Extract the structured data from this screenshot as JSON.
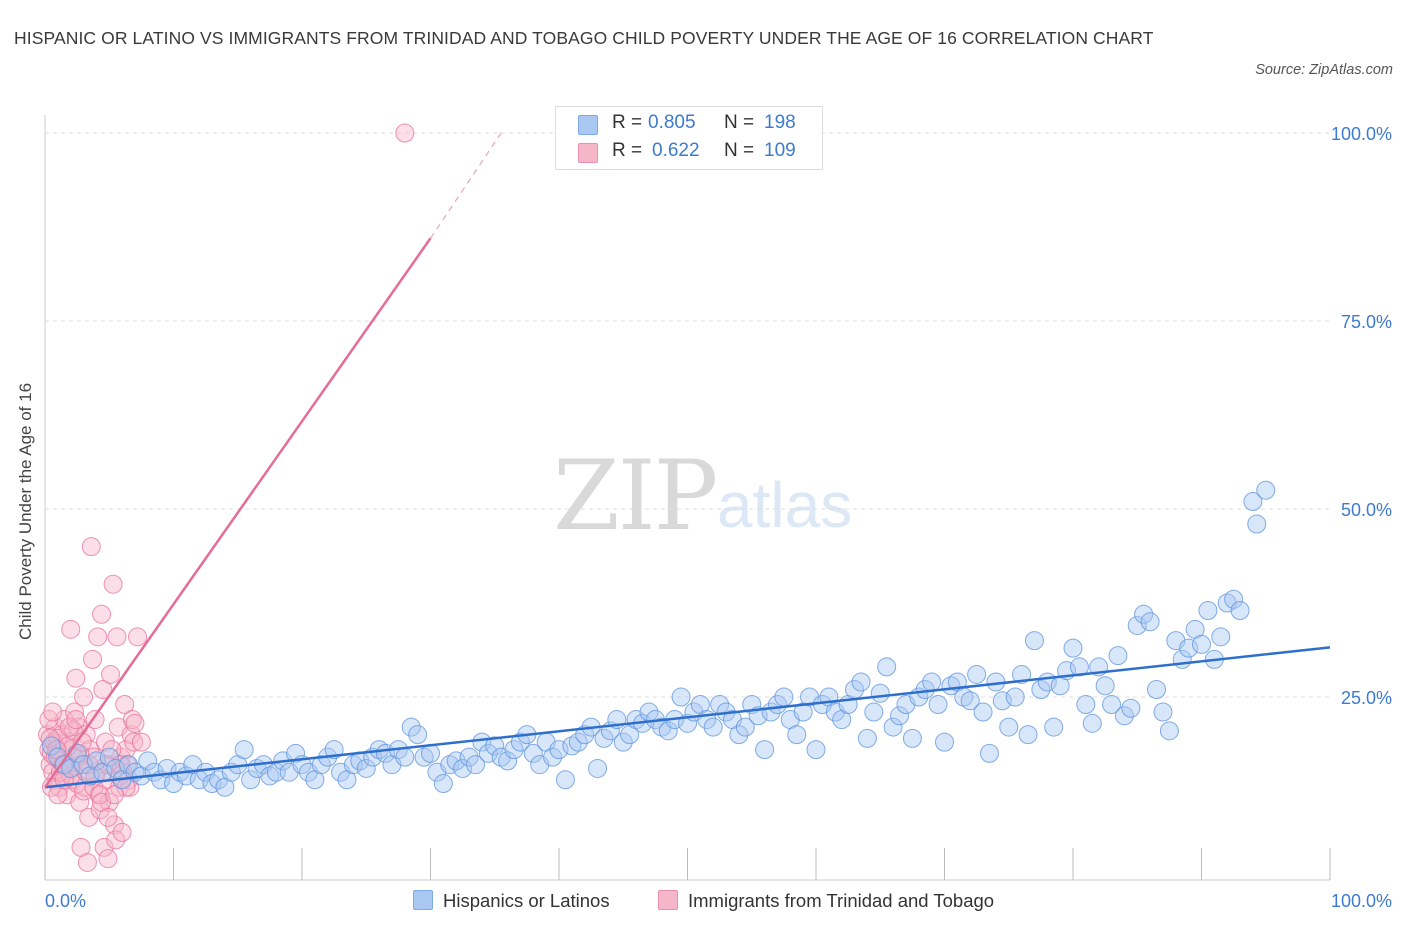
{
  "title": "HISPANIC OR LATINO VS IMMIGRANTS FROM TRINIDAD AND TOBAGO CHILD POVERTY UNDER THE AGE OF 16 CORRELATION CHART",
  "source": "Source: ZipAtlas.com",
  "watermark": {
    "zip": "ZIP",
    "atlas": "atlas"
  },
  "legend": [
    {
      "r_label": "R =",
      "r_value": "0.805",
      "n_label": "N =",
      "n_value": "198",
      "color": "#a9c8f2"
    },
    {
      "r_label": "R =",
      "r_value": "0.622",
      "n_label": "N =",
      "n_value": "109",
      "color": "#f6b6ca"
    }
  ],
  "chart_data": {
    "type": "scatter",
    "title": "HISPANIC OR LATINO VS IMMIGRANTS FROM TRINIDAD AND TOBAGO CHILD POVERTY UNDER THE AGE OF 16 CORRELATION CHART",
    "xlabel": "",
    "ylabel": "Child Poverty Under the Age of 16",
    "xlim": [
      0,
      100
    ],
    "ylim": [
      0,
      100
    ],
    "x_tick_labels": [
      "0.0%",
      "100.0%"
    ],
    "y_ticks": [
      25,
      50,
      75,
      100
    ],
    "y_tick_labels": [
      "25.0%",
      "50.0%",
      "75.0%",
      "100.0%"
    ],
    "grid": true,
    "legend_position": "bottom",
    "series": [
      {
        "name": "Hispanics or Latinos",
        "color": "#5b93de",
        "fill": "#a9c8f2",
        "trend": {
          "x0": 0,
          "y0": 13,
          "x1": 100,
          "y1": 31.6
        },
        "points": [
          [
            0.5,
            18.5
          ],
          [
            1,
            17
          ],
          [
            1.5,
            16
          ],
          [
            2,
            15.5
          ],
          [
            2.5,
            17.5
          ],
          [
            3,
            16
          ],
          [
            3.5,
            14.5
          ],
          [
            4,
            16.5
          ],
          [
            4.5,
            15
          ],
          [
            5,
            17
          ],
          [
            5.5,
            15.5
          ],
          [
            6,
            14
          ],
          [
            6.5,
            16
          ],
          [
            7,
            15
          ],
          [
            7.5,
            14.5
          ],
          [
            8,
            16.5
          ],
          [
            8.5,
            15
          ],
          [
            9,
            14
          ],
          [
            9.5,
            15.5
          ],
          [
            10,
            13.5
          ],
          [
            10.5,
            15
          ],
          [
            11,
            14.5
          ],
          [
            11.5,
            16
          ],
          [
            12,
            14
          ],
          [
            12.5,
            15
          ],
          [
            13,
            13.5
          ],
          [
            13.5,
            14
          ],
          [
            14,
            13
          ],
          [
            14.5,
            15
          ],
          [
            15,
            16
          ],
          [
            15.5,
            18
          ],
          [
            16,
            14
          ],
          [
            16.5,
            15.5
          ],
          [
            17,
            16
          ],
          [
            17.5,
            14.5
          ],
          [
            18,
            15
          ],
          [
            18.5,
            16.5
          ],
          [
            19,
            15
          ],
          [
            19.5,
            17.5
          ],
          [
            20,
            16
          ],
          [
            20.5,
            15
          ],
          [
            21,
            14
          ],
          [
            21.5,
            16
          ],
          [
            22,
            17
          ],
          [
            22.5,
            18
          ],
          [
            23,
            15
          ],
          [
            23.5,
            14
          ],
          [
            24,
            16
          ],
          [
            24.5,
            16.5
          ],
          [
            25,
            15.5
          ],
          [
            25.5,
            17
          ],
          [
            26,
            18
          ],
          [
            26.5,
            17.5
          ],
          [
            27,
            16
          ],
          [
            27.5,
            18
          ],
          [
            28,
            17
          ],
          [
            28.5,
            21
          ],
          [
            29,
            20
          ],
          [
            29.5,
            17
          ],
          [
            30,
            17.5
          ],
          [
            30.5,
            15
          ],
          [
            31,
            13.5
          ],
          [
            31.5,
            16
          ],
          [
            32,
            16.5
          ],
          [
            32.5,
            15.5
          ],
          [
            33,
            17
          ],
          [
            33.5,
            16
          ],
          [
            34,
            19
          ],
          [
            34.5,
            17.5
          ],
          [
            35,
            18.5
          ],
          [
            35.5,
            17
          ],
          [
            36,
            16.5
          ],
          [
            36.5,
            18
          ],
          [
            37,
            19
          ],
          [
            37.5,
            20
          ],
          [
            38,
            17.5
          ],
          [
            38.5,
            16
          ],
          [
            39,
            19
          ],
          [
            39.5,
            17
          ],
          [
            40,
            18
          ],
          [
            40.5,
            14
          ],
          [
            41,
            18.5
          ],
          [
            41.5,
            19
          ],
          [
            42,
            20
          ],
          [
            42.5,
            21
          ],
          [
            43,
            15.5
          ],
          [
            43.5,
            19.5
          ],
          [
            44,
            20.5
          ],
          [
            44.5,
            22
          ],
          [
            45,
            19
          ],
          [
            45.5,
            20
          ],
          [
            46,
            22
          ],
          [
            46.5,
            21.5
          ],
          [
            47,
            23
          ],
          [
            47.5,
            22
          ],
          [
            48,
            21
          ],
          [
            48.5,
            20.5
          ],
          [
            49,
            22
          ],
          [
            49.5,
            25
          ],
          [
            50,
            21.5
          ],
          [
            50.5,
            23
          ],
          [
            51,
            24
          ],
          [
            51.5,
            22
          ],
          [
            52,
            21
          ],
          [
            52.5,
            24
          ],
          [
            53,
            23
          ],
          [
            53.5,
            22
          ],
          [
            54,
            20
          ],
          [
            54.5,
            21
          ],
          [
            55,
            24
          ],
          [
            55.5,
            22.5
          ],
          [
            56,
            18
          ],
          [
            56.5,
            23
          ],
          [
            57,
            24
          ],
          [
            57.5,
            25
          ],
          [
            58,
            22
          ],
          [
            58.5,
            20
          ],
          [
            59,
            23
          ],
          [
            59.5,
            25
          ],
          [
            60,
            18
          ],
          [
            60.5,
            24
          ],
          [
            61,
            25
          ],
          [
            61.5,
            23
          ],
          [
            62,
            22
          ],
          [
            62.5,
            24
          ],
          [
            63,
            26
          ],
          [
            63.5,
            27
          ],
          [
            64,
            19.5
          ],
          [
            64.5,
            23
          ],
          [
            65,
            25.5
          ],
          [
            65.5,
            29
          ],
          [
            66,
            21
          ],
          [
            66.5,
            22.5
          ],
          [
            67,
            24
          ],
          [
            67.5,
            19.5
          ],
          [
            68,
            25
          ],
          [
            68.5,
            26
          ],
          [
            69,
            27
          ],
          [
            69.5,
            24
          ],
          [
            70,
            19
          ],
          [
            70.5,
            26.5
          ],
          [
            71,
            27
          ],
          [
            71.5,
            25
          ],
          [
            72,
            24.5
          ],
          [
            72.5,
            28
          ],
          [
            73,
            23
          ],
          [
            73.5,
            17.5
          ],
          [
            74,
            27
          ],
          [
            74.5,
            24.5
          ],
          [
            75,
            21
          ],
          [
            75.5,
            25
          ],
          [
            76,
            28
          ],
          [
            76.5,
            20
          ],
          [
            77,
            32.5
          ],
          [
            77.5,
            26
          ],
          [
            78,
            27
          ],
          [
            78.5,
            21
          ],
          [
            79,
            26.5
          ],
          [
            79.5,
            28.5
          ],
          [
            80,
            31.5
          ],
          [
            80.5,
            29
          ],
          [
            81,
            24
          ],
          [
            81.5,
            21.5
          ],
          [
            82,
            29
          ],
          [
            82.5,
            26.5
          ],
          [
            83,
            24
          ],
          [
            83.5,
            30.5
          ],
          [
            84,
            22.5
          ],
          [
            84.5,
            23.5
          ],
          [
            85,
            34.5
          ],
          [
            85.5,
            36
          ],
          [
            86,
            35
          ],
          [
            86.5,
            26
          ],
          [
            87,
            23
          ],
          [
            87.5,
            20.5
          ],
          [
            88,
            32.5
          ],
          [
            88.5,
            30
          ],
          [
            89,
            31.5
          ],
          [
            89.5,
            34
          ],
          [
            90,
            32
          ],
          [
            90.5,
            36.5
          ],
          [
            91,
            30
          ],
          [
            91.5,
            33
          ],
          [
            92,
            37.5
          ],
          [
            92.5,
            38
          ],
          [
            93,
            36.5
          ],
          [
            94,
            51
          ],
          [
            94.3,
            48
          ],
          [
            95,
            52.5
          ]
        ]
      },
      {
        "name": "Immigrants from Trinidad and Tobago",
        "color": "#e8719a",
        "fill": "#f6b6ca",
        "trend": {
          "x0": 0,
          "y0": 13,
          "x1": 30,
          "y1": 86,
          "dash_to": {
            "x": 35.5,
            "y": 100
          }
        },
        "points": [
          [
            0.2,
            20
          ],
          [
            0.3,
            18
          ],
          [
            0.4,
            16
          ],
          [
            0.5,
            17.5
          ],
          [
            0.6,
            15
          ],
          [
            0.7,
            19
          ],
          [
            0.8,
            21
          ],
          [
            0.9,
            14
          ],
          [
            1,
            18
          ],
          [
            1.1,
            13
          ],
          [
            1.2,
            16.5
          ],
          [
            1.3,
            20
          ],
          [
            1.4,
            17
          ],
          [
            1.5,
            22
          ],
          [
            1.6,
            15.5
          ],
          [
            1.7,
            12
          ],
          [
            1.8,
            19
          ],
          [
            1.9,
            16
          ],
          [
            2,
            34
          ],
          [
            2.1,
            18
          ],
          [
            2.2,
            14
          ],
          [
            2.3,
            23
          ],
          [
            2.4,
            27.5
          ],
          [
            2.5,
            17
          ],
          [
            2.6,
            21
          ],
          [
            2.7,
            11
          ],
          [
            2.8,
            5
          ],
          [
            2.9,
            16
          ],
          [
            3,
            25
          ],
          [
            3.1,
            13
          ],
          [
            3.2,
            20
          ],
          [
            3.3,
            3
          ],
          [
            3.4,
            9
          ],
          [
            3.5,
            18
          ],
          [
            3.6,
            45
          ],
          [
            3.7,
            30
          ],
          [
            3.8,
            17
          ],
          [
            3.9,
            22
          ],
          [
            4,
            15
          ],
          [
            4.1,
            33
          ],
          [
            4.2,
            12
          ],
          [
            4.3,
            10
          ],
          [
            4.4,
            36
          ],
          [
            4.5,
            26
          ],
          [
            4.6,
            5
          ],
          [
            4.7,
            19
          ],
          [
            4.8,
            14
          ],
          [
            4.9,
            3.5
          ],
          [
            5,
            11
          ],
          [
            5.1,
            28
          ],
          [
            5.2,
            16
          ],
          [
            5.3,
            40
          ],
          [
            5.4,
            8
          ],
          [
            5.5,
            6
          ],
          [
            5.6,
            33
          ],
          [
            5.7,
            21
          ],
          [
            5.8,
            13
          ],
          [
            5.9,
            17
          ],
          [
            6,
            7
          ],
          [
            6.1,
            15
          ],
          [
            6.2,
            24
          ],
          [
            6.3,
            18
          ],
          [
            6.4,
            16
          ],
          [
            6.5,
            14
          ],
          [
            6.6,
            13
          ],
          [
            6.7,
            20
          ],
          [
            6.8,
            22
          ],
          [
            6.9,
            19
          ],
          [
            7,
            21.5
          ],
          [
            7.2,
            33
          ],
          [
            7.5,
            19
          ],
          [
            0.3,
            22
          ],
          [
            0.6,
            23
          ],
          [
            1,
            19.5
          ],
          [
            1.5,
            16
          ],
          [
            2,
            14.5
          ],
          [
            2.5,
            13.5
          ],
          [
            3,
            12.5
          ],
          [
            0.8,
            17
          ],
          [
            1.2,
            15
          ],
          [
            1.8,
            18.5
          ],
          [
            2.2,
            20.5
          ],
          [
            2.7,
            17.5
          ],
          [
            3.2,
            15
          ],
          [
            3.8,
            13
          ],
          [
            4.3,
            12
          ],
          [
            4.8,
            16
          ],
          [
            5.2,
            18
          ],
          [
            5.8,
            14.5
          ],
          [
            6.3,
            13
          ],
          [
            0.4,
            19.5
          ],
          [
            0.9,
            18
          ],
          [
            1.4,
            16
          ],
          [
            1.9,
            21
          ],
          [
            2.4,
            22
          ],
          [
            2.9,
            19
          ],
          [
            3.4,
            16
          ],
          [
            3.9,
            14.5
          ],
          [
            4.4,
            11
          ],
          [
            4.9,
            9
          ],
          [
            5.4,
            12
          ],
          [
            5.9,
            16
          ],
          [
            0.5,
            13
          ],
          [
            1,
            12
          ],
          [
            1.5,
            14
          ],
          [
            28,
            100
          ]
        ]
      }
    ]
  }
}
